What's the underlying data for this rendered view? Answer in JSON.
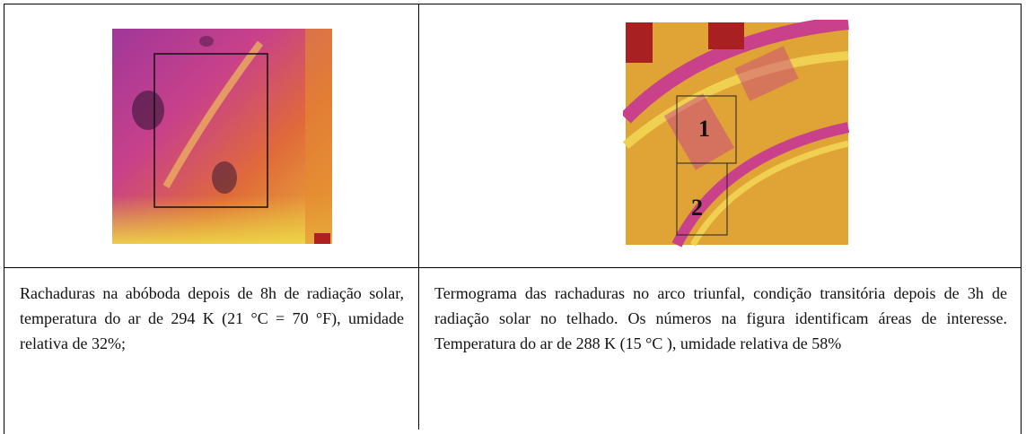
{
  "table": {
    "captions": [
      "Rachaduras na abóboda depois de 8h de radiação solar, temperatura do ar de 294 K (21 °C = 70 °F), umidade relativa de 32%;",
      "Termograma das rachaduras no arco triunfal, condição transitória depois de 3h de radiação solar no telhado. Os números na figura identificam áreas de interesse. Temperatura do ar de 288 K (15 °C ), umidade relativa de 58%"
    ],
    "image_labels": [
      "1",
      "2"
    ]
  }
}
